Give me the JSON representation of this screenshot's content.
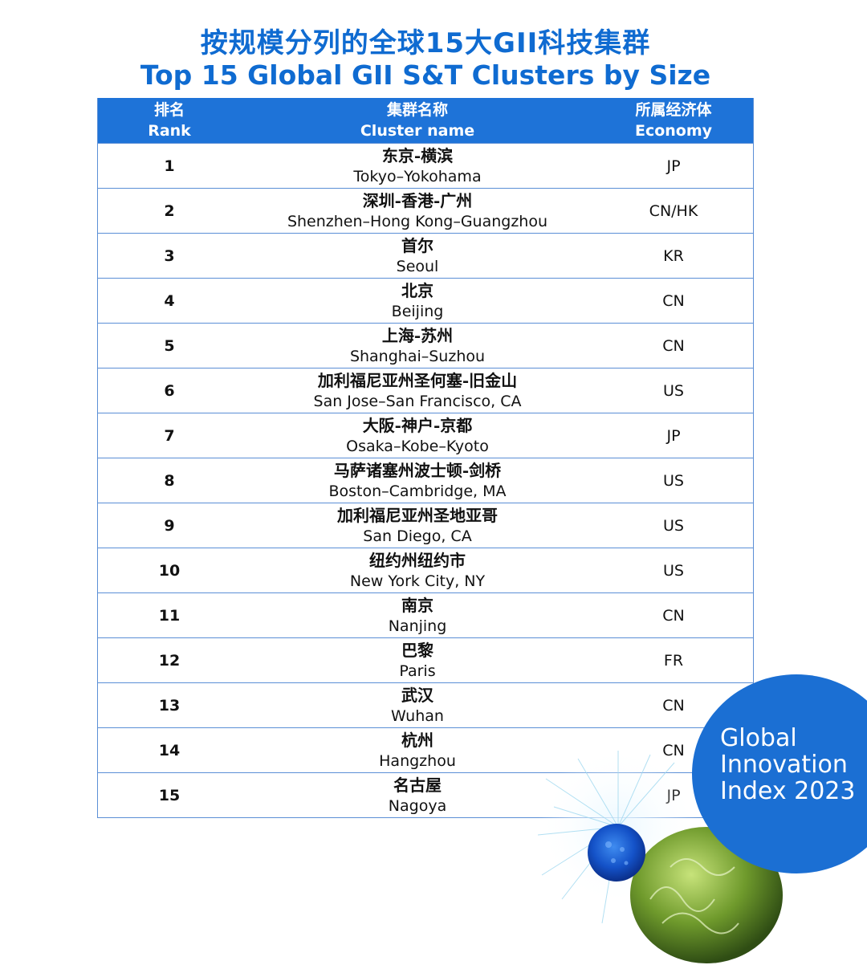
{
  "title": {
    "cn": "按规模分列的全球15大GII科技集群",
    "en": "Top 15 Global GII S&T Clusters by Size"
  },
  "table": {
    "headers": {
      "rank": {
        "cn": "排名",
        "en": "Rank"
      },
      "name": {
        "cn": "集群名称",
        "en": "Cluster name"
      },
      "economy": {
        "cn": "所属经济体",
        "en": "Economy"
      }
    },
    "rows": [
      {
        "rank": "1",
        "cn": "东京-横滨",
        "en": "Tokyo–Yokohama",
        "economy": "JP"
      },
      {
        "rank": "2",
        "cn": "深圳-香港-广州",
        "en": "Shenzhen–Hong Kong–Guangzhou",
        "economy": "CN/HK"
      },
      {
        "rank": "3",
        "cn": "首尔",
        "en": "Seoul",
        "economy": "KR"
      },
      {
        "rank": "4",
        "cn": "北京",
        "en": "Beijing",
        "economy": "CN"
      },
      {
        "rank": "5",
        "cn": "上海-苏州",
        "en": "Shanghai–Suzhou",
        "economy": "CN"
      },
      {
        "rank": "6",
        "cn": "加利福尼亚州圣何塞-旧金山",
        "en": "San Jose–San Francisco, CA",
        "economy": "US"
      },
      {
        "rank": "7",
        "cn": "大阪-神户-京都",
        "en": "Osaka–Kobe–Kyoto",
        "economy": "JP"
      },
      {
        "rank": "8",
        "cn": "马萨诸塞州波士顿-剑桥",
        "en": "Boston–Cambridge, MA",
        "economy": "US"
      },
      {
        "rank": "9",
        "cn": "加利福尼亚州圣地亚哥",
        "en": "San Diego, CA",
        "economy": "US"
      },
      {
        "rank": "10",
        "cn": "纽约州纽约市",
        "en": "New York City, NY",
        "economy": "US"
      },
      {
        "rank": "11",
        "cn": "南京",
        "en": "Nanjing",
        "economy": "CN"
      },
      {
        "rank": "12",
        "cn": "巴黎",
        "en": "Paris",
        "economy": "FR"
      },
      {
        "rank": "13",
        "cn": "武汉",
        "en": "Wuhan",
        "economy": "CN"
      },
      {
        "rank": "14",
        "cn": "杭州",
        "en": "Hangzhou",
        "economy": "CN"
      },
      {
        "rank": "15",
        "cn": "名古屋",
        "en": "Nagoya",
        "economy": "JP"
      }
    ]
  },
  "logo": {
    "line1": "Global",
    "line2": "Innovation",
    "line3": "Index 2023"
  },
  "colors": {
    "brand_blue": "#1b6fd3",
    "header_blue": "#1e73d8",
    "title_blue": "#0f6bd1"
  }
}
